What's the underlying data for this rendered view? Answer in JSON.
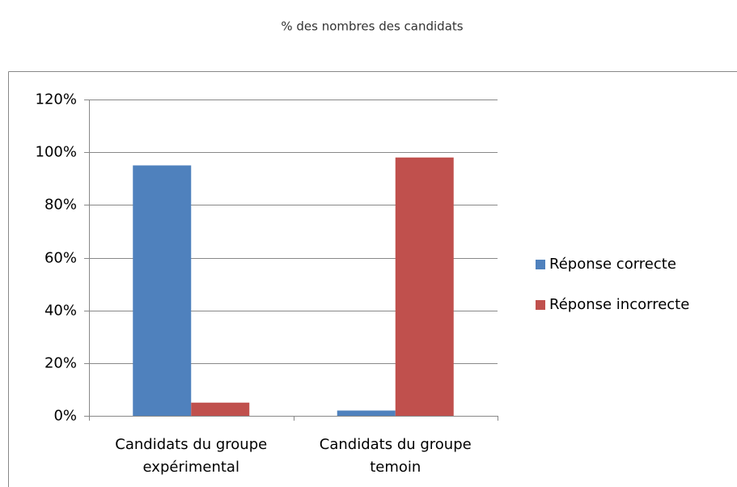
{
  "chart_data": {
    "type": "bar",
    "title": "% des nombres des candidats",
    "categories": [
      "Candidats du groupe expérimental",
      "Candidats du groupe temoin"
    ],
    "series": [
      {
        "name": "Réponse correcte",
        "color": "#4f81bd",
        "values": [
          95,
          2
        ]
      },
      {
        "name": "Réponse incorrecte",
        "color": "#c0504d",
        "values": [
          5,
          98
        ]
      }
    ],
    "ylim": [
      0,
      120
    ],
    "yticks": [
      {
        "value": 0,
        "label": "0%"
      },
      {
        "value": 20,
        "label": "20%"
      },
      {
        "value": 40,
        "label": "40%"
      },
      {
        "value": 60,
        "label": "60%"
      },
      {
        "value": 80,
        "label": "80%"
      },
      {
        "value": 100,
        "label": "100%"
      },
      {
        "value": 120,
        "label": "120%"
      }
    ],
    "grid": true,
    "legend": "right"
  }
}
